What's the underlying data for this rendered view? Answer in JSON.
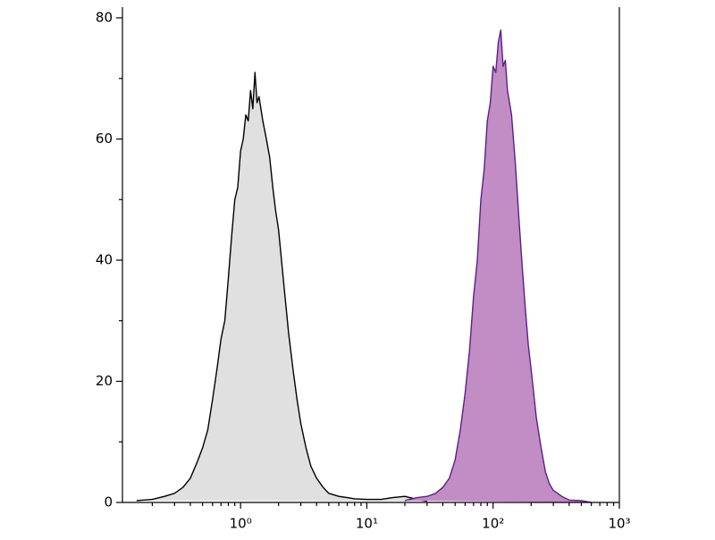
{
  "chart_data": {
    "type": "area",
    "xscale": "log",
    "xlim": [
      0.116,
      1000
    ],
    "xticks": [
      {
        "value": 1,
        "label": "10⁰"
      },
      {
        "value": 10,
        "label": "10¹"
      },
      {
        "value": 100,
        "label": "10²"
      },
      {
        "value": 1000,
        "label": "10³"
      }
    ],
    "xminorticks": [
      0.2,
      0.3,
      0.4,
      0.5,
      0.6,
      0.7,
      0.8,
      0.9,
      2,
      3,
      4,
      5,
      6,
      7,
      8,
      9,
      20,
      30,
      40,
      50,
      60,
      70,
      80,
      90,
      200,
      300,
      400,
      500,
      600,
      700,
      800,
      900
    ],
    "ylim": [
      0,
      80
    ],
    "yticks": [
      0,
      20,
      40,
      60,
      80
    ],
    "yminorticks": [
      10,
      30,
      50,
      70
    ],
    "series": [
      {
        "color": "#000000",
        "fill": "#e0e0e0",
        "x": [
          0.15,
          0.2,
          0.25,
          0.3,
          0.35,
          0.4,
          0.45,
          0.5,
          0.55,
          0.6,
          0.65,
          0.7,
          0.75,
          0.8,
          0.85,
          0.9,
          0.95,
          1.0,
          1.05,
          1.1,
          1.15,
          1.2,
          1.25,
          1.3,
          1.35,
          1.4,
          1.5,
          1.6,
          1.7,
          1.8,
          1.9,
          2.0,
          2.2,
          2.4,
          2.6,
          2.8,
          3.0,
          3.3,
          3.6,
          4,
          4.5,
          5,
          6,
          7,
          8,
          10,
          13,
          16,
          20,
          25,
          30
        ],
        "values": [
          0.3,
          0.5,
          1,
          1.5,
          2.5,
          4,
          6.5,
          9,
          12,
          17,
          22,
          27,
          30,
          37,
          44,
          50,
          52,
          58,
          60,
          64,
          63,
          68,
          65,
          71,
          66,
          67,
          63,
          60,
          57,
          52,
          48,
          45,
          36,
          28,
          22,
          17,
          13,
          9,
          6,
          4,
          2.5,
          1.5,
          1,
          0.8,
          0.6,
          0.5,
          0.5,
          0.8,
          1,
          0.5,
          0.2
        ]
      },
      {
        "color": "#5b1f8a",
        "fill": "#c28cc4",
        "x": [
          20,
          25,
          30,
          35,
          40,
          45,
          50,
          55,
          60,
          65,
          70,
          75,
          80,
          85,
          90,
          95,
          100,
          105,
          110,
          115,
          120,
          125,
          130,
          140,
          150,
          160,
          170,
          180,
          190,
          200,
          220,
          240,
          260,
          280,
          300,
          350,
          400,
          500,
          600
        ],
        "values": [
          0.3,
          0.8,
          1,
          1.5,
          2.5,
          4,
          7,
          12,
          18,
          25,
          34,
          40,
          50,
          55,
          63,
          66,
          72,
          71,
          76,
          78,
          72,
          73,
          68,
          64,
          56,
          47,
          39,
          32,
          26,
          22,
          14,
          9,
          5,
          3,
          2,
          1,
          0.4,
          0.3,
          0
        ]
      }
    ]
  }
}
